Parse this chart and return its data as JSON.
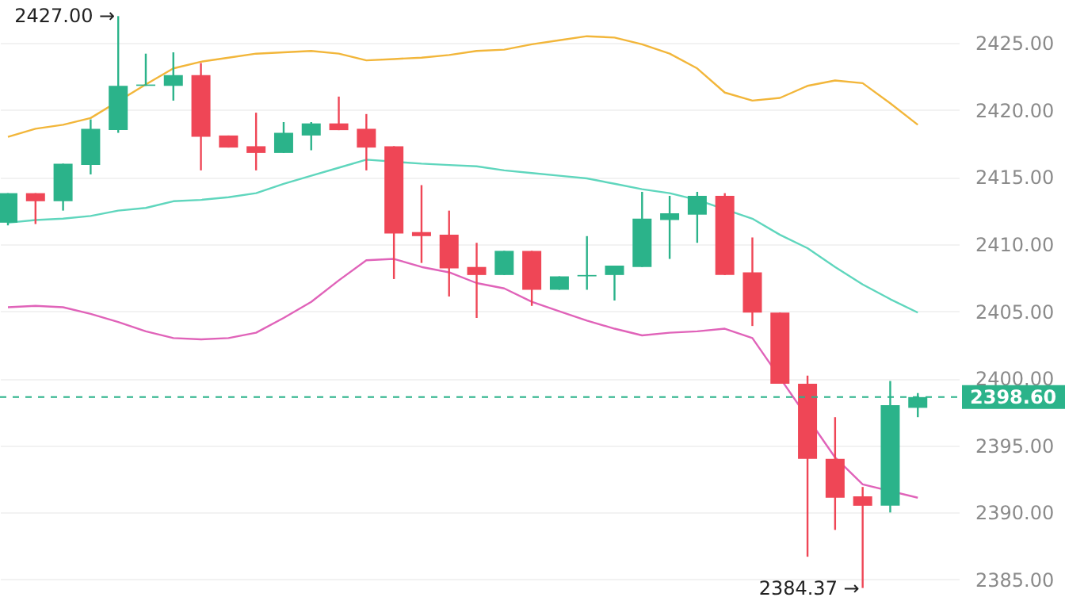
{
  "chart_data": {
    "type": "candlestick",
    "categories": [
      null,
      null,
      null,
      null,
      null,
      null,
      null,
      null,
      null,
      null,
      null,
      null,
      null,
      null,
      null,
      null,
      null,
      null,
      null,
      null,
      null,
      null,
      null,
      null,
      null,
      null,
      null,
      null,
      null,
      null,
      null,
      null,
      null,
      null
    ],
    "ohlc": [
      [
        2411.6,
        2413.8,
        2411.4,
        2413.8
      ],
      [
        2413.8,
        2413.8,
        2411.5,
        2413.2
      ],
      [
        2413.2,
        2416.0,
        2412.5,
        2416.0
      ],
      [
        2415.9,
        2419.3,
        2415.2,
        2418.6
      ],
      [
        2418.5,
        2427.0,
        2418.3,
        2421.8
      ],
      [
        2421.8,
        2424.2,
        2421.8,
        2421.9
      ],
      [
        2421.8,
        2424.3,
        2420.7,
        2422.6
      ],
      [
        2422.6,
        2423.5,
        2415.5,
        2418.0
      ],
      [
        2418.1,
        2418.1,
        2417.2,
        2417.2
      ],
      [
        2417.3,
        2419.8,
        2415.5,
        2416.8
      ],
      [
        2416.8,
        2419.1,
        2416.8,
        2418.3
      ],
      [
        2418.1,
        2419.1,
        2417.0,
        2419.0
      ],
      [
        2419.0,
        2421.0,
        2418.5,
        2418.5
      ],
      [
        2418.6,
        2419.7,
        2415.5,
        2417.2
      ],
      [
        2417.3,
        2417.3,
        2407.4,
        2410.8
      ],
      [
        2410.9,
        2414.4,
        2408.6,
        2410.6
      ],
      [
        2410.7,
        2412.5,
        2406.1,
        2408.2
      ],
      [
        2408.3,
        2410.1,
        2404.5,
        2407.7
      ],
      [
        2407.7,
        2409.5,
        2407.7,
        2409.5
      ],
      [
        2409.5,
        2409.5,
        2405.4,
        2406.6
      ],
      [
        2406.6,
        2407.6,
        2406.6,
        2407.6
      ],
      [
        2407.6,
        2410.6,
        2406.6,
        2407.7
      ],
      [
        2407.7,
        2408.4,
        2405.8,
        2408.4
      ],
      [
        2408.3,
        2413.9,
        2408.3,
        2411.9
      ],
      [
        2411.8,
        2413.6,
        2408.9,
        2412.3
      ],
      [
        2412.2,
        2413.9,
        2410.1,
        2413.6
      ],
      [
        2413.6,
        2413.8,
        2407.7,
        2407.7
      ],
      [
        2407.9,
        2410.5,
        2403.9,
        2404.9
      ],
      [
        2404.9,
        2404.9,
        2399.6,
        2399.6
      ],
      [
        2399.6,
        2400.2,
        2386.7,
        2394.0
      ],
      [
        2394.0,
        2397.1,
        2388.7,
        2391.1
      ],
      [
        2391.2,
        2391.9,
        2384.37,
        2390.5
      ],
      [
        2390.5,
        2399.8,
        2390.0,
        2398.0
      ],
      [
        2397.8,
        2398.9,
        2397.1,
        2398.6
      ]
    ],
    "colors": [
      "#2bb38a",
      "#ef4656",
      "#2bb38a",
      "#2bb38a",
      "#2bb38a",
      "#2bb38a",
      "#2bb38a",
      "#ef4656",
      "#ef4656",
      "#ef4656",
      "#2bb38a",
      "#2bb38a",
      "#ef4656",
      "#ef4656",
      "#ef4656",
      "#ef4656",
      "#ef4656",
      "#ef4656",
      "#2bb38a",
      "#ef4656",
      "#2bb38a",
      "#2bb38a",
      "#2bb38a",
      "#2bb38a",
      "#2bb38a",
      "#2bb38a",
      "#ef4656",
      "#ef4656",
      "#ef4656",
      "#ef4656",
      "#ef4656",
      "#ef4656",
      "#2bb38a",
      "#2bb38a"
    ],
    "series": [
      {
        "type": "line",
        "color": "#f2b63a",
        "values": [
          2418.0,
          2418.6,
          2418.9,
          2419.4,
          null,
          2421.9,
          2423.1,
          2423.6,
          2423.9,
          2424.2,
          2424.3,
          2424.4,
          2424.2,
          2423.7,
          2423.8,
          2423.9,
          2424.1,
          2424.4,
          2424.5,
          2424.9,
          2425.2,
          2425.5,
          2425.4,
          2424.9,
          2424.2,
          2423.1,
          2421.3,
          2420.7,
          2420.9,
          2421.8,
          2422.2,
          2422.0,
          2420.5,
          2418.9
        ]
      },
      {
        "type": "line",
        "color": "#5fd6bd",
        "values": [
          2411.6,
          2411.8,
          2411.9,
          2412.1,
          2412.5,
          2412.7,
          2413.2,
          2413.3,
          2413.5,
          2413.8,
          2414.5,
          2415.1,
          2415.7,
          2416.3,
          null,
          2416.0,
          2415.9,
          2415.8,
          2415.5,
          2415.3,
          2415.1,
          2414.9,
          2414.5,
          2414.1,
          2413.8,
          2413.3,
          null,
          2411.9,
          2410.7,
          2409.7,
          2408.3,
          2407.0,
          2405.9,
          2404.9
        ]
      },
      {
        "type": "line",
        "color": "#e063b9",
        "values": [
          2405.3,
          2405.4,
          2405.3,
          2404.8,
          2404.2,
          2403.5,
          2403.0,
          2402.9,
          2403.0,
          2403.4,
          2404.5,
          2405.7,
          2407.3,
          2408.8,
          2408.9,
          2408.3,
          2407.9,
          2407.1,
          2406.7,
          2405.7,
          2405.0,
          2404.3,
          2403.7,
          2403.2,
          2403.4,
          2403.5,
          2403.7,
          2403.0,
          null,
          null,
          2394.1,
          2392.1,
          null,
          2391.1
        ]
      }
    ],
    "ylim": [
      2383.4,
      2428.2
    ],
    "yticks": [
      {
        "value": 2385,
        "label": "2385.00"
      },
      {
        "value": 2390,
        "label": "2390.00"
      },
      {
        "value": 2395,
        "label": "2395.00"
      },
      {
        "value": 2400,
        "label": "2400.00"
      },
      {
        "value": 2405,
        "label": "2405.00"
      },
      {
        "value": 2410,
        "label": "2410.00"
      },
      {
        "value": 2415,
        "label": "2415.00"
      },
      {
        "value": 2420,
        "label": "2420.00"
      },
      {
        "value": 2425,
        "label": "2425.00"
      }
    ],
    "ref_lines": [
      {
        "axis": "y",
        "value": 2398.6,
        "label": "2398.60",
        "color": "#2bb38a",
        "line_style": "dashed"
      }
    ],
    "annotations": [
      "2427.00 →",
      "2384.37 →"
    ],
    "grid": "y",
    "tick_labels": "y",
    "marker": "none",
    "line_style": "solid"
  }
}
